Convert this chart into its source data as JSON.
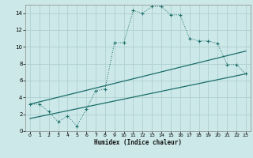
{
  "xlabel": "Humidex (Indice chaleur)",
  "background_color": "#cce8e8",
  "grid_color": "#b0d0d0",
  "line_color": "#1a6e6a",
  "xlim": [
    -0.5,
    23.5
  ],
  "ylim": [
    0,
    15
  ],
  "xticks": [
    0,
    1,
    2,
    3,
    4,
    5,
    6,
    7,
    8,
    9,
    10,
    11,
    12,
    13,
    14,
    15,
    16,
    17,
    18,
    19,
    20,
    21,
    22,
    23
  ],
  "yticks": [
    0,
    2,
    4,
    6,
    8,
    10,
    12,
    14
  ],
  "series1_x": [
    0,
    1,
    2,
    3,
    4,
    5,
    6,
    7,
    8,
    9,
    10,
    11,
    12,
    13,
    14,
    15,
    16,
    17,
    18,
    19,
    20,
    21,
    22,
    23
  ],
  "series1_y": [
    3.2,
    3.2,
    2.3,
    1.1,
    1.8,
    0.6,
    2.6,
    4.8,
    5.0,
    10.5,
    10.5,
    14.3,
    14.0,
    14.8,
    14.8,
    13.8,
    13.8,
    11.0,
    10.7,
    10.7,
    10.4,
    7.9,
    7.9,
    6.8
  ],
  "series2_x": [
    0,
    23
  ],
  "series2_y": [
    3.2,
    9.5
  ],
  "series3_x": [
    0,
    23
  ],
  "series3_y": [
    1.5,
    6.8
  ],
  "figwidth": 3.2,
  "figheight": 2.0,
  "dpi": 100
}
